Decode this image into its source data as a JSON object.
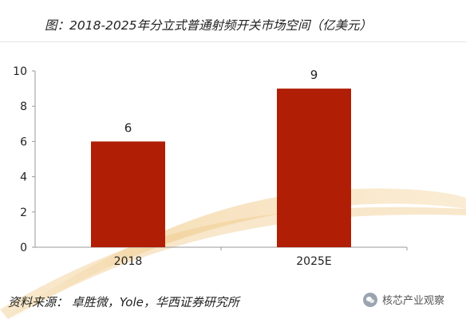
{
  "header": {
    "title": "图：2018-2025年分立式普通射频开关市场空间（亿美元）"
  },
  "footer": {
    "source": "资料来源： 卓胜微，Yole，华西证券研究所",
    "watermark": "核芯产业观察",
    "watermark_icon": "wechat-icon"
  },
  "colors": {
    "bar": "#B01E06",
    "axis": "#999999",
    "swoosh": "#F3D7A6"
  },
  "chart_data": {
    "type": "bar",
    "title": "图：2018-2025年分立式普通射频开关市场空间（亿美元）",
    "xlabel": "",
    "ylabel": "",
    "categories": [
      "2018",
      "2025E"
    ],
    "values": [
      6,
      9
    ],
    "data_labels": [
      "6",
      "9"
    ],
    "ylim": [
      0,
      10
    ],
    "yticks": [
      "0",
      "2",
      "4",
      "6",
      "8",
      "10"
    ],
    "grid": false,
    "legend": "none"
  }
}
